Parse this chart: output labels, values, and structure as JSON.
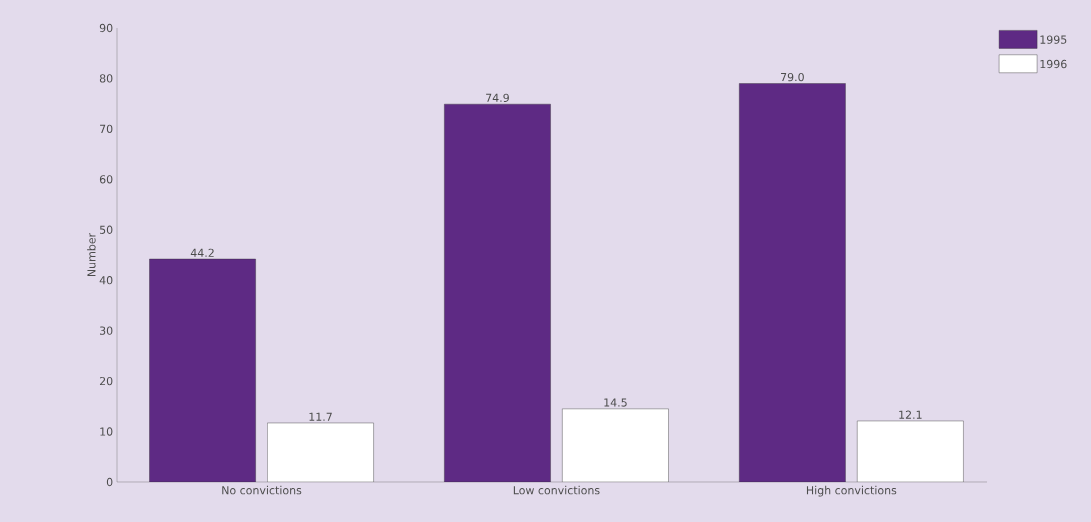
{
  "chart_data": {
    "type": "bar",
    "ylabel": "Number",
    "categories": [
      "No convictions",
      "Low convictions",
      "High convictions"
    ],
    "series": [
      {
        "name": "1995",
        "color": "#5e2a84",
        "values": [
          44.2,
          74.9,
          79.0
        ],
        "value_labels": [
          "44.2",
          "74.9",
          "79.0"
        ]
      },
      {
        "name": "1996",
        "color": "#ffffff",
        "values": [
          11.7,
          14.5,
          12.1
        ],
        "value_labels": [
          "11.7",
          "14.5",
          "12.1"
        ]
      }
    ],
    "ylim": [
      0,
      90
    ],
    "yticks": [
      0,
      10,
      20,
      30,
      40,
      50,
      60,
      70,
      80,
      90
    ],
    "legend": "top right",
    "grid": false
  }
}
